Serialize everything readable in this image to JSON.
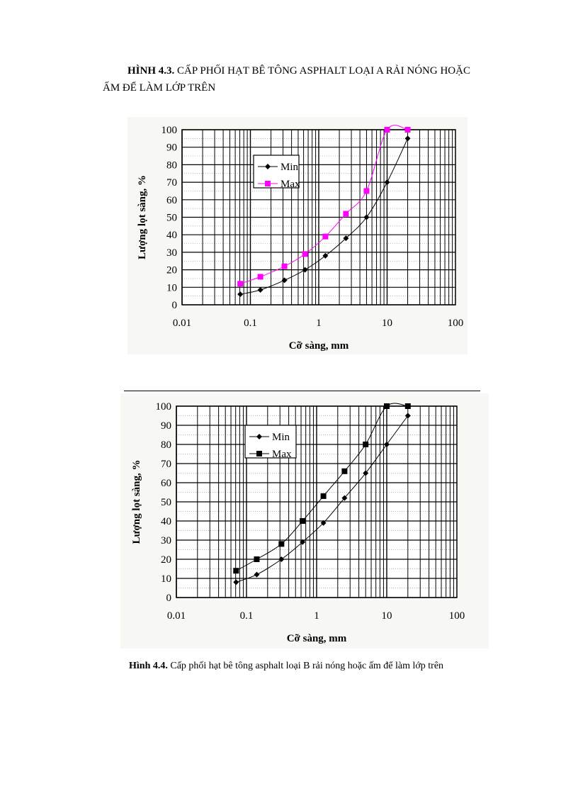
{
  "heading": {
    "fig_label": "HÌNH 4.3.",
    "line1": "CẤP PHỐI HẠT BÊ TÔNG ASPHALT LOẠI A RẢI NÓNG HOẶC",
    "line2": "ẤM ĐỂ LÀM LỚP TRÊN"
  },
  "caption": {
    "fig_label": "Hình 4.4.",
    "text": "Cấp phối hạt bê tông asphalt loại B rải nóng hoặc ấm để làm lớp trên"
  },
  "chart_data": [
    {
      "type": "line",
      "xlabel": "Cỡ sàng, mm",
      "ylabel": "Lượng lọt sàng, %",
      "x_scale": "log",
      "xlim": [
        0.01,
        100
      ],
      "ylim": [
        0,
        100
      ],
      "x_ticks": [
        "0.01",
        "0.1",
        "1",
        "10",
        "100"
      ],
      "y_ticks": [
        "0",
        "10",
        "20",
        "30",
        "40",
        "50",
        "60",
        "70",
        "80",
        "90",
        "100"
      ],
      "grid": true,
      "legend": "upper-left",
      "x": [
        0.071,
        0.14,
        0.315,
        0.63,
        1.25,
        2.5,
        5,
        10,
        20
      ],
      "series": [
        {
          "name": "Min",
          "values": [
            6,
            8.5,
            14,
            20,
            28,
            38,
            50,
            70,
            95
          ],
          "color": "#000000",
          "marker": "diamond"
        },
        {
          "name": "Max",
          "values": [
            12,
            16,
            22,
            29,
            39,
            52,
            65,
            100,
            100
          ],
          "color": "#ff00ff",
          "marker": "square"
        }
      ]
    },
    {
      "type": "line",
      "xlabel": "Cỡ sàng, mm",
      "ylabel": "Lượng lọt sàng, %",
      "x_scale": "log",
      "xlim": [
        0.01,
        100
      ],
      "ylim": [
        0,
        100
      ],
      "x_ticks": [
        "0.01",
        "0.1",
        "1",
        "10",
        "100"
      ],
      "y_ticks": [
        "0",
        "10",
        "20",
        "30",
        "40",
        "50",
        "60",
        "70",
        "80",
        "90",
        "100"
      ],
      "grid": true,
      "legend": "upper-left",
      "x": [
        0.071,
        0.14,
        0.315,
        0.63,
        1.25,
        2.5,
        5,
        10,
        20
      ],
      "series": [
        {
          "name": "Min",
          "values": [
            8,
            12,
            20,
            29,
            39,
            52,
            65,
            80,
            95
          ],
          "color": "#000000",
          "marker": "diamond"
        },
        {
          "name": "Max",
          "values": [
            14,
            20,
            28,
            40,
            53,
            66,
            80,
            100,
            100
          ],
          "color": "#000000",
          "marker": "square"
        }
      ]
    }
  ]
}
